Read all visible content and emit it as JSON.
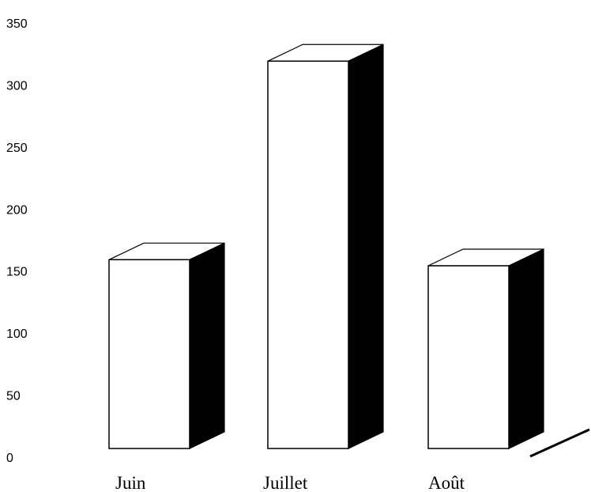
{
  "chart_data": {
    "type": "bar",
    "style": "3d-bars",
    "categories": [
      "Juin",
      "Juillet",
      "Août"
    ],
    "values": [
      155,
      318,
      150
    ],
    "ylim": [
      0,
      350
    ],
    "yticks": [
      0,
      50,
      100,
      150,
      200,
      250,
      300,
      350
    ],
    "grid": false,
    "legend": "none",
    "colors": {
      "bar_front": "#ffffff",
      "bar_side": "#000000",
      "stroke": "#000000"
    }
  }
}
